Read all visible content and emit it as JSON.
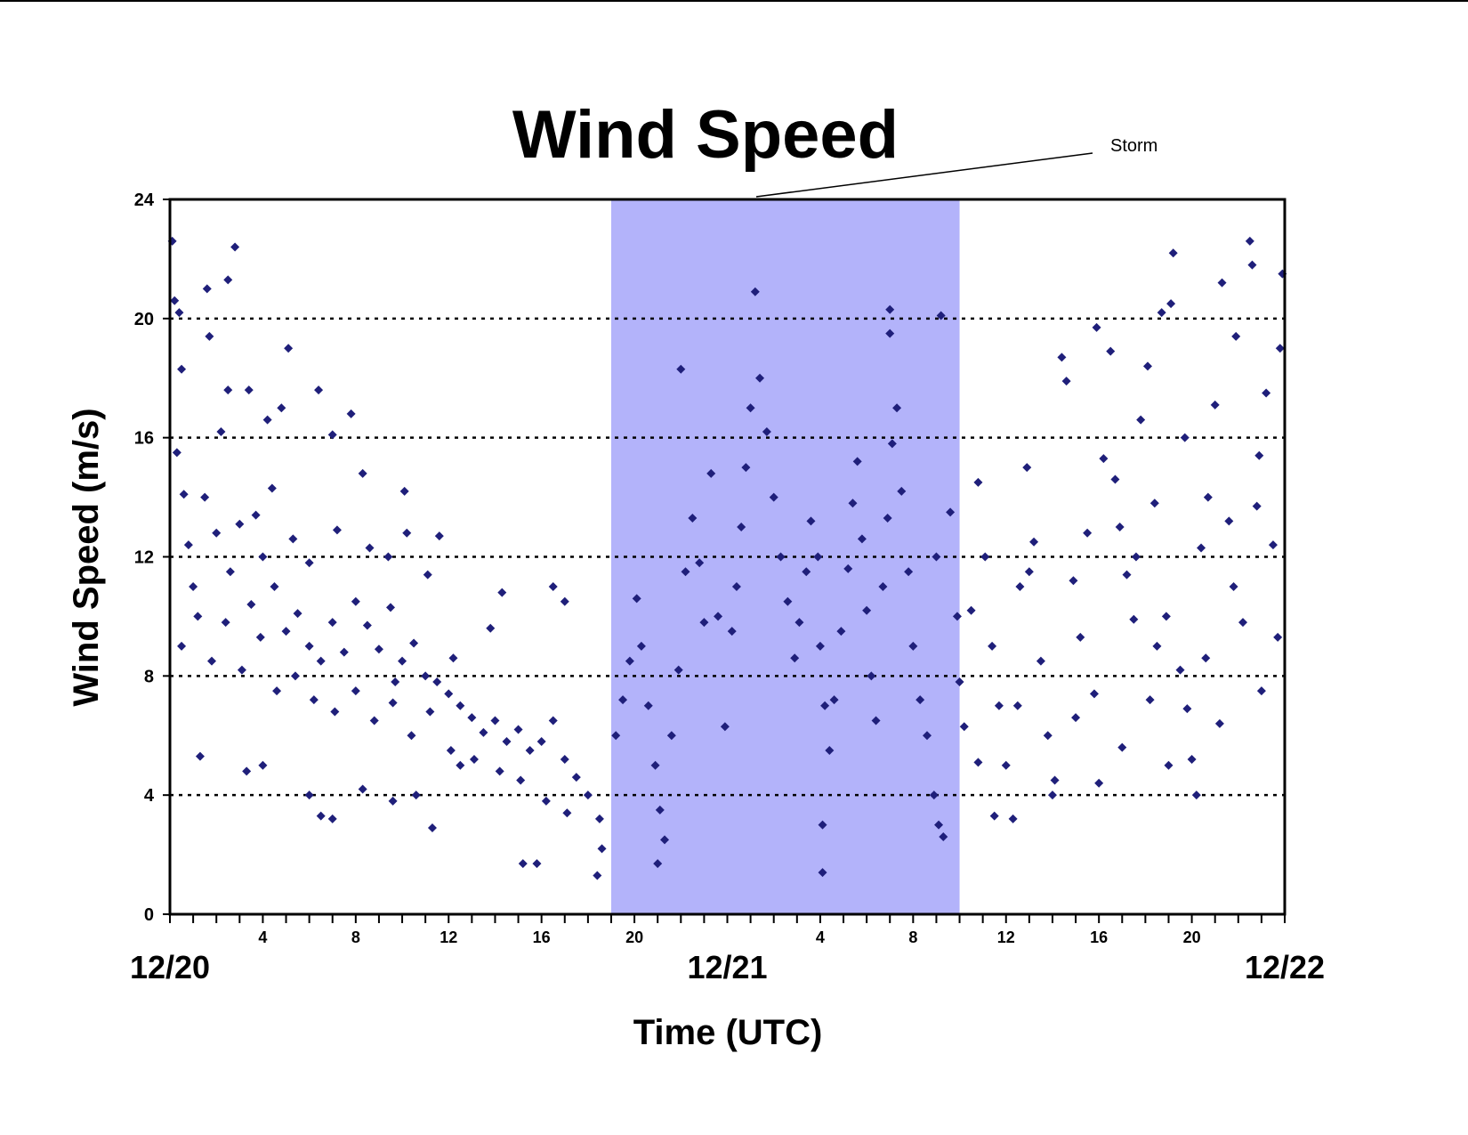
{
  "chart_data": {
    "type": "scatter",
    "title": "Wind Speed",
    "xlabel": "Time (UTC)",
    "ylabel": "Wind Speed (m/s)",
    "xlim": [
      0,
      48
    ],
    "ylim": [
      0,
      24
    ],
    "x_unit": "hours since 12/20 00 UTC",
    "y_ticks": [
      "0",
      "4",
      "8",
      "12",
      "16",
      "20",
      "24"
    ],
    "y_tick_values": [
      0,
      4,
      8,
      12,
      16,
      20,
      24
    ],
    "gridlines_y": [
      4,
      8,
      12,
      16,
      20
    ],
    "x_hour_ticks": [
      {
        "x": 4,
        "label": "4"
      },
      {
        "x": 8,
        "label": "8"
      },
      {
        "x": 12,
        "label": "12"
      },
      {
        "x": 16,
        "label": "16"
      },
      {
        "x": 20,
        "label": "20"
      },
      {
        "x": 28,
        "label": "4"
      },
      {
        "x": 32,
        "label": "8"
      },
      {
        "x": 36,
        "label": "12"
      },
      {
        "x": 40,
        "label": "16"
      },
      {
        "x": 44,
        "label": "20"
      }
    ],
    "x_date_ticks": [
      {
        "x": 0,
        "label": "12/20"
      },
      {
        "x": 24,
        "label": "12/21"
      },
      {
        "x": 48,
        "label": "12/22"
      }
    ],
    "shaded_region": {
      "label": "Storm",
      "x_start": 19,
      "x_end": 34,
      "color": "#b3b3fa"
    },
    "marker_color": "#1f1f7a",
    "marker": "diamond",
    "series": [
      {
        "points": [
          [
            0.1,
            22.6
          ],
          [
            0.2,
            20.6
          ],
          [
            0.4,
            20.2
          ],
          [
            0.5,
            18.3
          ],
          [
            0.3,
            15.5
          ],
          [
            0.6,
            14.1
          ],
          [
            0.8,
            12.4
          ],
          [
            1.0,
            11.0
          ],
          [
            0.5,
            9.0
          ],
          [
            1.3,
            5.3
          ],
          [
            1.6,
            21.0
          ],
          [
            1.7,
            19.4
          ],
          [
            2.5,
            21.3
          ],
          [
            2.8,
            22.4
          ],
          [
            2.5,
            17.6
          ],
          [
            3.4,
            17.6
          ],
          [
            4.2,
            16.6
          ],
          [
            4.8,
            17.0
          ],
          [
            5.1,
            19.0
          ],
          [
            6.4,
            17.6
          ],
          [
            7.0,
            16.1
          ],
          [
            7.8,
            16.8
          ],
          [
            8.3,
            14.8
          ],
          [
            10.1,
            14.2
          ],
          [
            11.6,
            12.7
          ],
          [
            1.5,
            14.0
          ],
          [
            2.0,
            12.8
          ],
          [
            2.6,
            11.5
          ],
          [
            3.0,
            13.1
          ],
          [
            3.5,
            10.4
          ],
          [
            4.0,
            12.0
          ],
          [
            4.5,
            11.0
          ],
          [
            5.0,
            9.5
          ],
          [
            5.5,
            10.1
          ],
          [
            6.0,
            9.0
          ],
          [
            6.5,
            8.5
          ],
          [
            7.0,
            9.8
          ],
          [
            7.5,
            8.8
          ],
          [
            8.0,
            10.5
          ],
          [
            8.5,
            9.7
          ],
          [
            9.0,
            8.9
          ],
          [
            9.5,
            10.3
          ],
          [
            10.0,
            8.5
          ],
          [
            10.5,
            9.1
          ],
          [
            11.0,
            8.0
          ],
          [
            11.5,
            7.8
          ],
          [
            12.0,
            7.4
          ],
          [
            12.5,
            7.0
          ],
          [
            13.0,
            6.6
          ],
          [
            13.5,
            6.1
          ],
          [
            14.0,
            6.5
          ],
          [
            14.5,
            5.8
          ],
          [
            15.0,
            6.2
          ],
          [
            15.5,
            5.5
          ],
          [
            16.0,
            5.8
          ],
          [
            16.5,
            6.5
          ],
          [
            17.0,
            5.2
          ],
          [
            17.5,
            4.6
          ],
          [
            18.0,
            4.0
          ],
          [
            18.5,
            3.2
          ],
          [
            18.6,
            2.2
          ],
          [
            18.4,
            1.3
          ],
          [
            15.2,
            1.7
          ],
          [
            15.8,
            1.7
          ],
          [
            16.5,
            11.0
          ],
          [
            17.0,
            10.5
          ],
          [
            14.3,
            10.8
          ],
          [
            13.8,
            9.6
          ],
          [
            12.2,
            8.6
          ],
          [
            9.7,
            7.8
          ],
          [
            6.0,
            4.0
          ],
          [
            6.5,
            3.3
          ],
          [
            7.0,
            3.2
          ],
          [
            9.6,
            3.8
          ],
          [
            11.3,
            2.9
          ],
          [
            3.3,
            4.8
          ],
          [
            4.0,
            5.0
          ],
          [
            8.3,
            4.2
          ],
          [
            10.6,
            4.0
          ],
          [
            12.5,
            5.0
          ],
          [
            2.2,
            16.2
          ],
          [
            3.7,
            13.4
          ],
          [
            4.4,
            14.3
          ],
          [
            5.3,
            12.6
          ],
          [
            6.0,
            11.8
          ],
          [
            7.2,
            12.9
          ],
          [
            8.6,
            12.3
          ],
          [
            9.4,
            12.0
          ],
          [
            10.2,
            12.8
          ],
          [
            11.1,
            11.4
          ],
          [
            1.2,
            10.0
          ],
          [
            1.8,
            8.5
          ],
          [
            2.4,
            9.8
          ],
          [
            3.1,
            8.2
          ],
          [
            3.9,
            9.3
          ],
          [
            4.6,
            7.5
          ],
          [
            5.4,
            8.0
          ],
          [
            6.2,
            7.2
          ],
          [
            7.1,
            6.8
          ],
          [
            8.0,
            7.5
          ],
          [
            8.8,
            6.5
          ],
          [
            9.6,
            7.1
          ],
          [
            10.4,
            6.0
          ],
          [
            11.2,
            6.8
          ],
          [
            12.1,
            5.5
          ],
          [
            13.1,
            5.2
          ],
          [
            14.2,
            4.8
          ],
          [
            15.1,
            4.5
          ],
          [
            16.2,
            3.8
          ],
          [
            17.1,
            3.4
          ],
          [
            19.2,
            6.0
          ],
          [
            19.5,
            7.2
          ],
          [
            19.8,
            8.5
          ],
          [
            20.1,
            10.6
          ],
          [
            20.3,
            9.0
          ],
          [
            20.6,
            7.0
          ],
          [
            20.9,
            5.0
          ],
          [
            21.1,
            3.5
          ],
          [
            21.0,
            1.7
          ],
          [
            21.3,
            2.5
          ],
          [
            21.6,
            6.0
          ],
          [
            21.9,
            8.2
          ],
          [
            22.2,
            11.5
          ],
          [
            22.5,
            13.3
          ],
          [
            22.8,
            11.8
          ],
          [
            22.0,
            18.3
          ],
          [
            23.0,
            9.8
          ],
          [
            23.3,
            14.8
          ],
          [
            23.6,
            10.0
          ],
          [
            23.9,
            6.3
          ],
          [
            24.2,
            9.5
          ],
          [
            24.4,
            11.0
          ],
          [
            24.6,
            13.0
          ],
          [
            24.8,
            15.0
          ],
          [
            25.0,
            17.0
          ],
          [
            25.2,
            20.9
          ],
          [
            25.4,
            18.0
          ],
          [
            25.7,
            16.2
          ],
          [
            26.0,
            14.0
          ],
          [
            26.3,
            12.0
          ],
          [
            26.6,
            10.5
          ],
          [
            26.9,
            8.6
          ],
          [
            27.1,
            9.8
          ],
          [
            27.4,
            11.5
          ],
          [
            27.6,
            13.2
          ],
          [
            27.9,
            12.0
          ],
          [
            28.0,
            9.0
          ],
          [
            28.2,
            7.0
          ],
          [
            28.4,
            5.5
          ],
          [
            28.1,
            3.0
          ],
          [
            28.1,
            1.4
          ],
          [
            28.6,
            7.2
          ],
          [
            28.9,
            9.5
          ],
          [
            29.2,
            11.6
          ],
          [
            29.4,
            13.8
          ],
          [
            29.6,
            15.2
          ],
          [
            29.8,
            12.6
          ],
          [
            30.0,
            10.2
          ],
          [
            30.2,
            8.0
          ],
          [
            30.4,
            6.5
          ],
          [
            30.7,
            11.0
          ],
          [
            30.9,
            13.3
          ],
          [
            31.1,
            15.8
          ],
          [
            31.3,
            17.0
          ],
          [
            31.0,
            20.3
          ],
          [
            31.0,
            19.5
          ],
          [
            31.5,
            14.2
          ],
          [
            31.8,
            11.5
          ],
          [
            32.0,
            9.0
          ],
          [
            32.3,
            7.2
          ],
          [
            32.6,
            6.0
          ],
          [
            32.9,
            4.0
          ],
          [
            33.1,
            3.0
          ],
          [
            33.3,
            2.6
          ],
          [
            33.0,
            12.0
          ],
          [
            33.2,
            20.1
          ],
          [
            33.6,
            13.5
          ],
          [
            33.9,
            10.0
          ],
          [
            34.0,
            7.8
          ],
          [
            34.2,
            6.3
          ],
          [
            34.5,
            10.2
          ],
          [
            34.8,
            14.5
          ],
          [
            35.1,
            12.0
          ],
          [
            35.4,
            9.0
          ],
          [
            35.7,
            7.0
          ],
          [
            36.0,
            5.0
          ],
          [
            36.3,
            3.2
          ],
          [
            36.6,
            11.0
          ],
          [
            36.9,
            15.0
          ],
          [
            37.2,
            12.5
          ],
          [
            37.5,
            8.5
          ],
          [
            37.8,
            6.0
          ],
          [
            38.1,
            4.5
          ],
          [
            38.4,
            18.7
          ],
          [
            38.6,
            17.9
          ],
          [
            38.9,
            11.2
          ],
          [
            39.2,
            9.3
          ],
          [
            39.5,
            12.8
          ],
          [
            39.8,
            7.4
          ],
          [
            39.9,
            19.7
          ],
          [
            40.2,
            15.3
          ],
          [
            40.5,
            18.9
          ],
          [
            40.9,
            13.0
          ],
          [
            41.2,
            11.4
          ],
          [
            41.5,
            9.9
          ],
          [
            41.8,
            16.6
          ],
          [
            42.1,
            18.4
          ],
          [
            42.4,
            13.8
          ],
          [
            42.7,
            20.2
          ],
          [
            42.9,
            10.0
          ],
          [
            43.1,
            20.5
          ],
          [
            43.2,
            22.2
          ],
          [
            43.5,
            8.2
          ],
          [
            43.8,
            6.9
          ],
          [
            44.0,
            5.2
          ],
          [
            44.2,
            4.0
          ],
          [
            44.4,
            12.3
          ],
          [
            44.7,
            14.0
          ],
          [
            45.0,
            17.1
          ],
          [
            45.3,
            21.2
          ],
          [
            45.6,
            13.2
          ],
          [
            45.9,
            19.4
          ],
          [
            46.2,
            9.8
          ],
          [
            46.5,
            22.6
          ],
          [
            46.6,
            21.8
          ],
          [
            46.9,
            15.4
          ],
          [
            47.2,
            17.5
          ],
          [
            47.5,
            12.4
          ],
          [
            47.8,
            19.0
          ],
          [
            47.9,
            21.5
          ],
          [
            47.7,
            9.3
          ],
          [
            47.0,
            7.5
          ],
          [
            45.2,
            6.4
          ],
          [
            44.6,
            8.6
          ],
          [
            43.0,
            5.0
          ],
          [
            42.5,
            9.0
          ],
          [
            41.0,
            5.6
          ],
          [
            40.0,
            4.4
          ],
          [
            38.0,
            4.0
          ],
          [
            36.5,
            7.0
          ],
          [
            35.5,
            3.3
          ],
          [
            34.8,
            5.1
          ],
          [
            37.0,
            11.5
          ],
          [
            39.0,
            6.6
          ],
          [
            40.7,
            14.6
          ],
          [
            41.6,
            12.0
          ],
          [
            42.2,
            7.2
          ],
          [
            43.7,
            16.0
          ],
          [
            45.8,
            11.0
          ],
          [
            46.8,
            13.7
          ]
        ]
      }
    ]
  },
  "annotation": {
    "storm_label": "Storm"
  }
}
